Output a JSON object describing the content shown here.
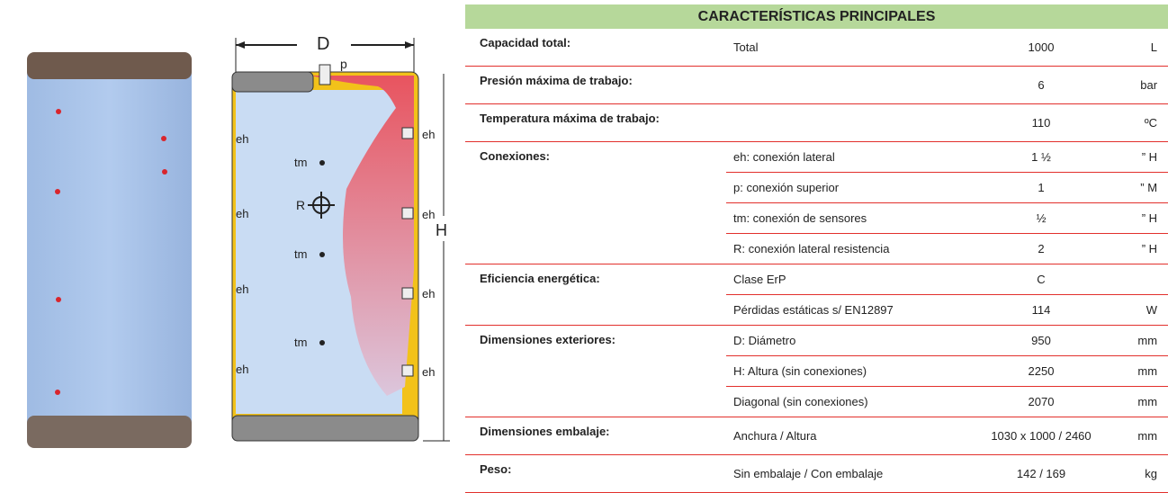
{
  "diagram": {
    "d": "D",
    "p": "p",
    "h": "H",
    "eh_left": [
      "eh",
      "eh",
      "eh",
      "eh"
    ],
    "eh_right": [
      "eh",
      "eh",
      "eh",
      "eh"
    ],
    "tm": [
      "tm",
      "tm",
      "tm"
    ],
    "r": "R"
  },
  "table": {
    "title": "CARACTERÍSTICAS PRINCIPALES",
    "groups": [
      {
        "label": "Capacidad total:",
        "rows": [
          {
            "description": "Total",
            "value": "1000",
            "unit": "L"
          }
        ]
      },
      {
        "label": "Presión máxima de trabajo:",
        "rows": [
          {
            "value": "6",
            "unit": "bar"
          }
        ]
      },
      {
        "label": "Temperatura máxima de trabajo:",
        "rows": [
          {
            "value": "110",
            "unit": "ºC"
          }
        ]
      },
      {
        "label": "Conexiones:",
        "rows": [
          {
            "description": "eh: conexión lateral",
            "value": "1 ½",
            "unit": "” H"
          },
          {
            "description": "p: conexión superior",
            "value": "1",
            "unit": "” M"
          },
          {
            "description": "tm: conexión de sensores",
            "value": "½",
            "unit": "” H"
          },
          {
            "description": "R: conexión lateral resistencia",
            "value": "2",
            "unit": "” H"
          }
        ]
      },
      {
        "label": "Eficiencia energética:",
        "rows": [
          {
            "description": "Clase ErP",
            "value": "C"
          },
          {
            "description": "Pérdidas estáticas s/ EN12897",
            "value": "114",
            "unit": "W"
          }
        ]
      },
      {
        "label": "Dimensiones exteriores:",
        "rows": [
          {
            "description": "D: Diámetro",
            "value": "950",
            "unit": "mm"
          },
          {
            "description": "H: Altura (sin conexiones)",
            "value": "2250",
            "unit": "mm"
          },
          {
            "description": "Diagonal (sin conexiones)",
            "value": "2070",
            "unit": "mm"
          }
        ]
      },
      {
        "label": "Dimensiones embalaje:",
        "rows": [
          {
            "description": "Anchura / Altura",
            "value": "1030 x 1000 / 2460",
            "unit": "mm"
          }
        ]
      },
      {
        "label": "Peso:",
        "rows": [
          {
            "description": "Sin embalaje / Con embalaje",
            "value": "142 / 169",
            "unit": "kg"
          }
        ]
      }
    ]
  }
}
